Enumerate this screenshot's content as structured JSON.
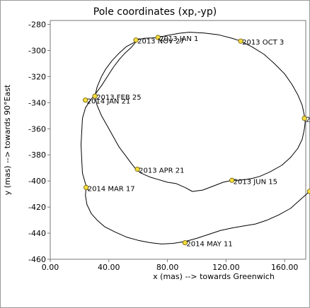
{
  "chart_data": {
    "type": "line",
    "title": "Pole coordinates (xp,-yp)",
    "xlabel": "x (mas) --> towards Greenwich",
    "ylabel": "y (mas) --> towards 90°East",
    "xlim": [
      0,
      175
    ],
    "ylim": [
      -460,
      -277
    ],
    "xticks": [
      0,
      40,
      80,
      120,
      160
    ],
    "xtick_labels": [
      "0.00",
      "40.00",
      "80.00",
      "120.00",
      "160.00"
    ],
    "yticks": [
      -280,
      -300,
      -320,
      -340,
      -360,
      -380,
      -400,
      -420,
      -440,
      -460
    ],
    "ytick_labels": [
      "-280",
      "-300",
      "-320",
      "-340",
      "-360",
      "-380",
      "-400",
      "-420",
      "-440",
      "-460"
    ],
    "grid": false,
    "legend": "none",
    "line_color": "#000000",
    "marker_color": "#f5dc3c",
    "series": [
      {
        "x": [
          58.5,
          64,
          70,
          73.5,
          80,
          88,
          95,
          105,
          115,
          124,
          130,
          138,
          146,
          153,
          160,
          165,
          169,
          172,
          173.5,
          174,
          173.5,
          172,
          169,
          164,
          158,
          150,
          143,
          138,
          133,
          128,
          124,
          118,
          111,
          104,
          97,
          92,
          86,
          80,
          74,
          68,
          62,
          58.5,
          55,
          51,
          47,
          44,
          41,
          38,
          35,
          32,
          30.5,
          32,
          35,
          38,
          42,
          47,
          52,
          57,
          59.5,
          58,
          55,
          51,
          47,
          43,
          39,
          35,
          31,
          27.5,
          24,
          22,
          21.5,
          21,
          21.5,
          22,
          24,
          26,
          24.5,
          24,
          25,
          28,
          32,
          37,
          44,
          52,
          60,
          68,
          76,
          84,
          92,
          100,
          108,
          116,
          124,
          132,
          140,
          148,
          156,
          164,
          171,
          177
        ],
        "y": [
          -292,
          -290.7,
          -290.3,
          -290,
          -288.4,
          -286.8,
          -286,
          -286.6,
          -288,
          -290.6,
          -292.8,
          -297.4,
          -303,
          -310,
          -318,
          -326,
          -334,
          -342,
          -350,
          -355,
          -360,
          -368,
          -375,
          -382,
          -388,
          -393,
          -396.5,
          -398,
          -399,
          -399.5,
          -399.5,
          -401,
          -404,
          -407,
          -408,
          -405,
          -402,
          -401,
          -399,
          -397,
          -394,
          -391,
          -386,
          -380,
          -374,
          -368,
          -362,
          -356,
          -350,
          -342,
          -335,
          -328,
          -320,
          -314,
          -308,
          -302,
          -297,
          -294,
          -292,
          -294,
          -298,
          -302,
          -307,
          -313,
          -320,
          -327,
          -333,
          -338,
          -344,
          -352,
          -362,
          -372,
          -384,
          -394,
          -402,
          -407,
          -405,
          -411,
          -418,
          -425,
          -430,
          -435,
          -439,
          -443,
          -445.5,
          -447.3,
          -448.3,
          -447.8,
          -446.4,
          -444,
          -441,
          -438,
          -436,
          -434.5,
          -433,
          -430,
          -426,
          -421,
          -414,
          -408
        ]
      }
    ],
    "points": [
      {
        "label": "2013 JAN 1",
        "x": 73.5,
        "y": -290
      },
      {
        "label": "2013 FEB 25",
        "x": 30.5,
        "y": -335
      },
      {
        "label": "2013 APR 21",
        "x": 59.5,
        "y": -391
      },
      {
        "label": "2013 JUN 15",
        "x": 124,
        "y": -399.5
      },
      {
        "label": "2013 AU",
        "x": 173.5,
        "y": -352
      },
      {
        "label": "2013 OCT 3",
        "x": 130,
        "y": -292.8
      },
      {
        "label": "2013 NOV 27",
        "x": 58.5,
        "y": -292
      },
      {
        "label": "2014 JAN 21",
        "x": 24,
        "y": -338
      },
      {
        "label": "2014 MAR 17",
        "x": 24.5,
        "y": -405
      },
      {
        "label": "2014 MAY 11",
        "x": 92,
        "y": -447.3
      },
      {
        "label": "2014 J",
        "x": 177,
        "y": -408
      }
    ]
  }
}
